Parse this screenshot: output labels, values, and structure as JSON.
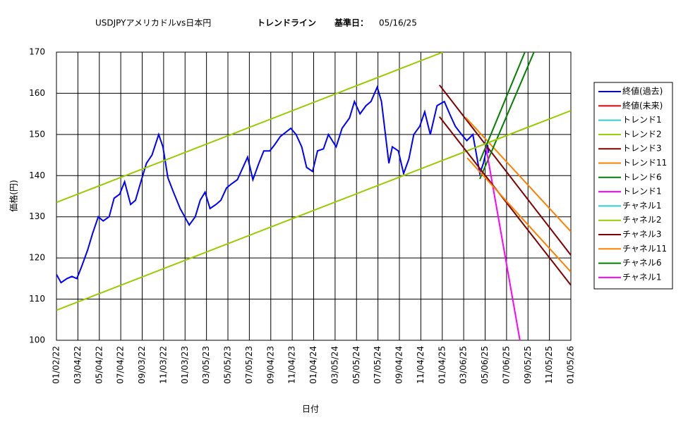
{
  "chart_data": {
    "type": "line",
    "title": "USDJPYアメリカドルvs日本円",
    "trend_label": "トレンドライン",
    "base_date_label": "基準日：",
    "base_date": "05/16/25",
    "x_label": "日付",
    "y_label": "価格(円)",
    "xlim": [
      "01/02/22",
      "01/05/26"
    ],
    "xticks": [
      "01/02/22",
      "03/04/22",
      "05/04/22",
      "07/04/22",
      "09/03/22",
      "11/03/22",
      "01/03/23",
      "03/05/23",
      "05/05/23",
      "07/05/23",
      "09/04/23",
      "11/04/23",
      "01/04/24",
      "03/05/24",
      "05/05/24",
      "07/05/24",
      "09/04/24",
      "11/04/24",
      "01/04/25",
      "03/06/25",
      "05/06/25",
      "07/06/25",
      "09/05/25",
      "11/05/25",
      "01/05/26"
    ],
    "ylim": [
      100,
      170
    ],
    "yticks": [
      100,
      110,
      120,
      130,
      140,
      150,
      160,
      170
    ],
    "grid": true,
    "legend": "right",
    "series": [
      {
        "name": "終値(過去)",
        "color": "#0000ff",
        "x": [
          "01/02/22",
          "01/15/22",
          "02/01/22",
          "02/15/22",
          "03/01/22",
          "03/15/22",
          "04/01/22",
          "04/15/22",
          "05/01/22",
          "05/15/22",
          "06/01/22",
          "06/15/22",
          "07/01/22",
          "07/15/22",
          "08/01/22",
          "08/15/22",
          "09/01/22",
          "09/15/22",
          "10/01/22",
          "10/20/22",
          "11/01/22",
          "11/15/22",
          "12/01/22",
          "12/20/22",
          "01/15/23",
          "02/01/23",
          "02/15/23",
          "03/01/23",
          "03/15/23",
          "04/01/23",
          "04/15/23",
          "05/01/23",
          "05/15/23",
          "06/01/23",
          "06/30/23",
          "07/15/23",
          "08/01/23",
          "08/15/23",
          "09/01/23",
          "09/15/23",
          "10/01/23",
          "10/31/23",
          "11/15/23",
          "12/01/23",
          "12/15/23",
          "01/01/24",
          "01/15/24",
          "02/01/24",
          "02/15/24",
          "03/08/24",
          "03/25/24",
          "04/15/24",
          "04/29/24",
          "05/15/24",
          "06/01/24",
          "06/15/24",
          "07/03/24",
          "07/15/24",
          "08/05/24",
          "08/15/24",
          "09/01/24",
          "09/16/24",
          "10/01/24",
          "10/15/24",
          "11/01/24",
          "11/15/24",
          "12/01/24",
          "12/20/24",
          "01/10/25",
          "01/25/25",
          "02/10/25",
          "02/28/25",
          "03/15/25",
          "04/01/25",
          "04/21/25",
          "05/01/25",
          "05/13/25",
          "05/16/25"
        ],
        "values": [
          116,
          114,
          115,
          115.5,
          115,
          118,
          122,
          126,
          130,
          129,
          130,
          134.5,
          135.5,
          138.5,
          133,
          134,
          139,
          143,
          145,
          150,
          147,
          139.5,
          136,
          132,
          128,
          130,
          134,
          136,
          132,
          133,
          134,
          137,
          138,
          139,
          144.5,
          139,
          143,
          146,
          146,
          147.5,
          149.5,
          151.5,
          150,
          147,
          142,
          141,
          146,
          146.5,
          150,
          147,
          151.5,
          154,
          158,
          155,
          157,
          158,
          161.5,
          158,
          143,
          147,
          146,
          140.5,
          144,
          150,
          152,
          155.5,
          150,
          157,
          158,
          155,
          152,
          150,
          148.5,
          150,
          140.5,
          143,
          147.5,
          145.5
        ]
      },
      {
        "name": "終値(未来)",
        "color": "#ff0000",
        "x": [],
        "values": []
      },
      {
        "name": "トレンド1",
        "color": "#33cccc",
        "x": [],
        "values": []
      },
      {
        "name": "トレンド2",
        "color": "#99cc00",
        "x": [
          "01/02/22",
          "01/06/25"
        ],
        "values": [
          133.5,
          170
        ]
      },
      {
        "name": "トレンド3",
        "color": "#800000",
        "x": [
          "12/27/24",
          "01/05/26"
        ],
        "values": [
          162,
          120.7
        ]
      },
      {
        "name": "トレンド11",
        "color": "#ff8000",
        "x": [
          "03/12/25",
          "01/05/26"
        ],
        "values": [
          154.1,
          126.4
        ]
      },
      {
        "name": "トレンド6",
        "color": "#008000",
        "x": [
          "04/21/25",
          "09/22/25"
        ],
        "values": [
          139.2,
          170
        ]
      },
      {
        "name": "トレンド1",
        "color": "#ff00ff",
        "x": [
          "05/07/25",
          "08/13/25"
        ],
        "values": [
          147.6,
          100
        ]
      },
      {
        "name": "チャネル1",
        "color": "#33cccc",
        "x": [],
        "values": []
      },
      {
        "name": "チャネル2",
        "color": "#99cc00",
        "x": [
          "01/02/22",
          "01/05/26"
        ],
        "values": [
          107.3,
          155.8
        ]
      },
      {
        "name": "チャネル3",
        "color": "#800000",
        "x": [
          "12/27/24",
          "01/05/26"
        ],
        "values": [
          154.3,
          113.4
        ]
      },
      {
        "name": "チャネル11",
        "color": "#ff8000",
        "x": [
          "03/16/25",
          "01/05/26"
        ],
        "values": [
          144.3,
          116.6
        ]
      },
      {
        "name": "チャネル6",
        "color": "#008000",
        "x": [
          "04/21/25",
          "08/27/25"
        ],
        "values": [
          143.5,
          170
        ]
      },
      {
        "name": "チャネル1",
        "color": "#ff00ff",
        "x": [],
        "values": []
      }
    ]
  }
}
